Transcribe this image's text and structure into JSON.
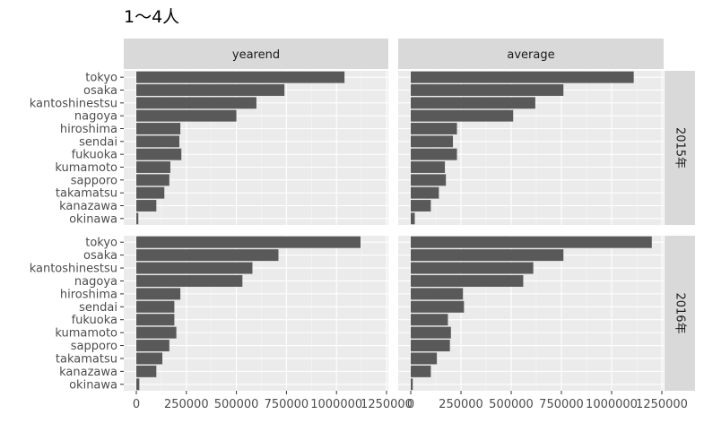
{
  "chart_data": {
    "type": "bar",
    "orientation": "horizontal",
    "title": "1～4人",
    "categories": [
      "tokyo",
      "osaka",
      "kantoshinestsu",
      "nagoya",
      "hiroshima",
      "sendai",
      "fukuoka",
      "kumamoto",
      "sapporo",
      "takamatsu",
      "kanazawa",
      "okinawa"
    ],
    "column_facets": [
      "yearend",
      "average"
    ],
    "row_facets": [
      "2015年",
      "2016年"
    ],
    "xlim": [
      0,
      1250000
    ],
    "x_ticks": [
      0,
      250000,
      500000,
      750000,
      1000000,
      1250000
    ],
    "x_tick_labels": [
      "0",
      "250000",
      "500000",
      "750000",
      "1000000",
      "1250000"
    ],
    "grid": true,
    "bar_color": "#595959",
    "panel_background": "#ebebeb",
    "strip_background": "#d9d9d9",
    "panels": [
      {
        "row": "2015年",
        "col": "yearend",
        "values": [
          1040000,
          740000,
          600000,
          500000,
          220000,
          215000,
          225000,
          170000,
          165000,
          140000,
          100000,
          10000
        ]
      },
      {
        "row": "2015年",
        "col": "average",
        "values": [
          1110000,
          760000,
          620000,
          510000,
          230000,
          210000,
          230000,
          170000,
          175000,
          140000,
          100000,
          20000
        ]
      },
      {
        "row": "2016年",
        "col": "yearend",
        "values": [
          1120000,
          710000,
          580000,
          530000,
          220000,
          190000,
          190000,
          200000,
          165000,
          130000,
          100000,
          15000
        ]
      },
      {
        "row": "2016年",
        "col": "average",
        "values": [
          1200000,
          760000,
          610000,
          560000,
          260000,
          265000,
          185000,
          200000,
          195000,
          130000,
          100000,
          10000
        ]
      }
    ]
  }
}
